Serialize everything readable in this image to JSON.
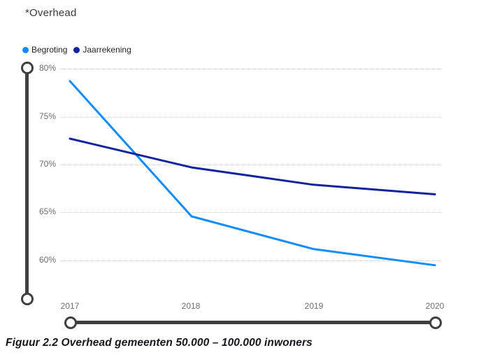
{
  "title": "*Overhead",
  "caption": "Figuur 2.2 Overhead gemeenten 50.000 – 100.000 inwoners",
  "colors": {
    "series_light_blue": "#118DFF",
    "series_dark_blue": "#12239E",
    "slider": "#3F3F3F",
    "gridline": "#D2D2D2",
    "tick_text": "#6E6E6E"
  },
  "chart_data": {
    "type": "line",
    "title": "*Overhead",
    "categories": [
      "2017",
      "2018",
      "2019",
      "2020"
    ],
    "series": [
      {
        "name": "Begroting",
        "color": "#118DFF",
        "values": [
          78.7,
          64.6,
          61.2,
          59.5
        ]
      },
      {
        "name": "Jaarrekening",
        "color": "#12239E",
        "values": [
          72.7,
          69.7,
          67.9,
          66.9
        ]
      }
    ],
    "xlabel": "",
    "ylabel": "",
    "y_ticks": [
      "80%",
      "75%",
      "70%",
      "65%",
      "60%"
    ],
    "ylim": [
      60,
      80
    ],
    "grid": "horizontal-dotted",
    "legend_position": "top-left"
  }
}
